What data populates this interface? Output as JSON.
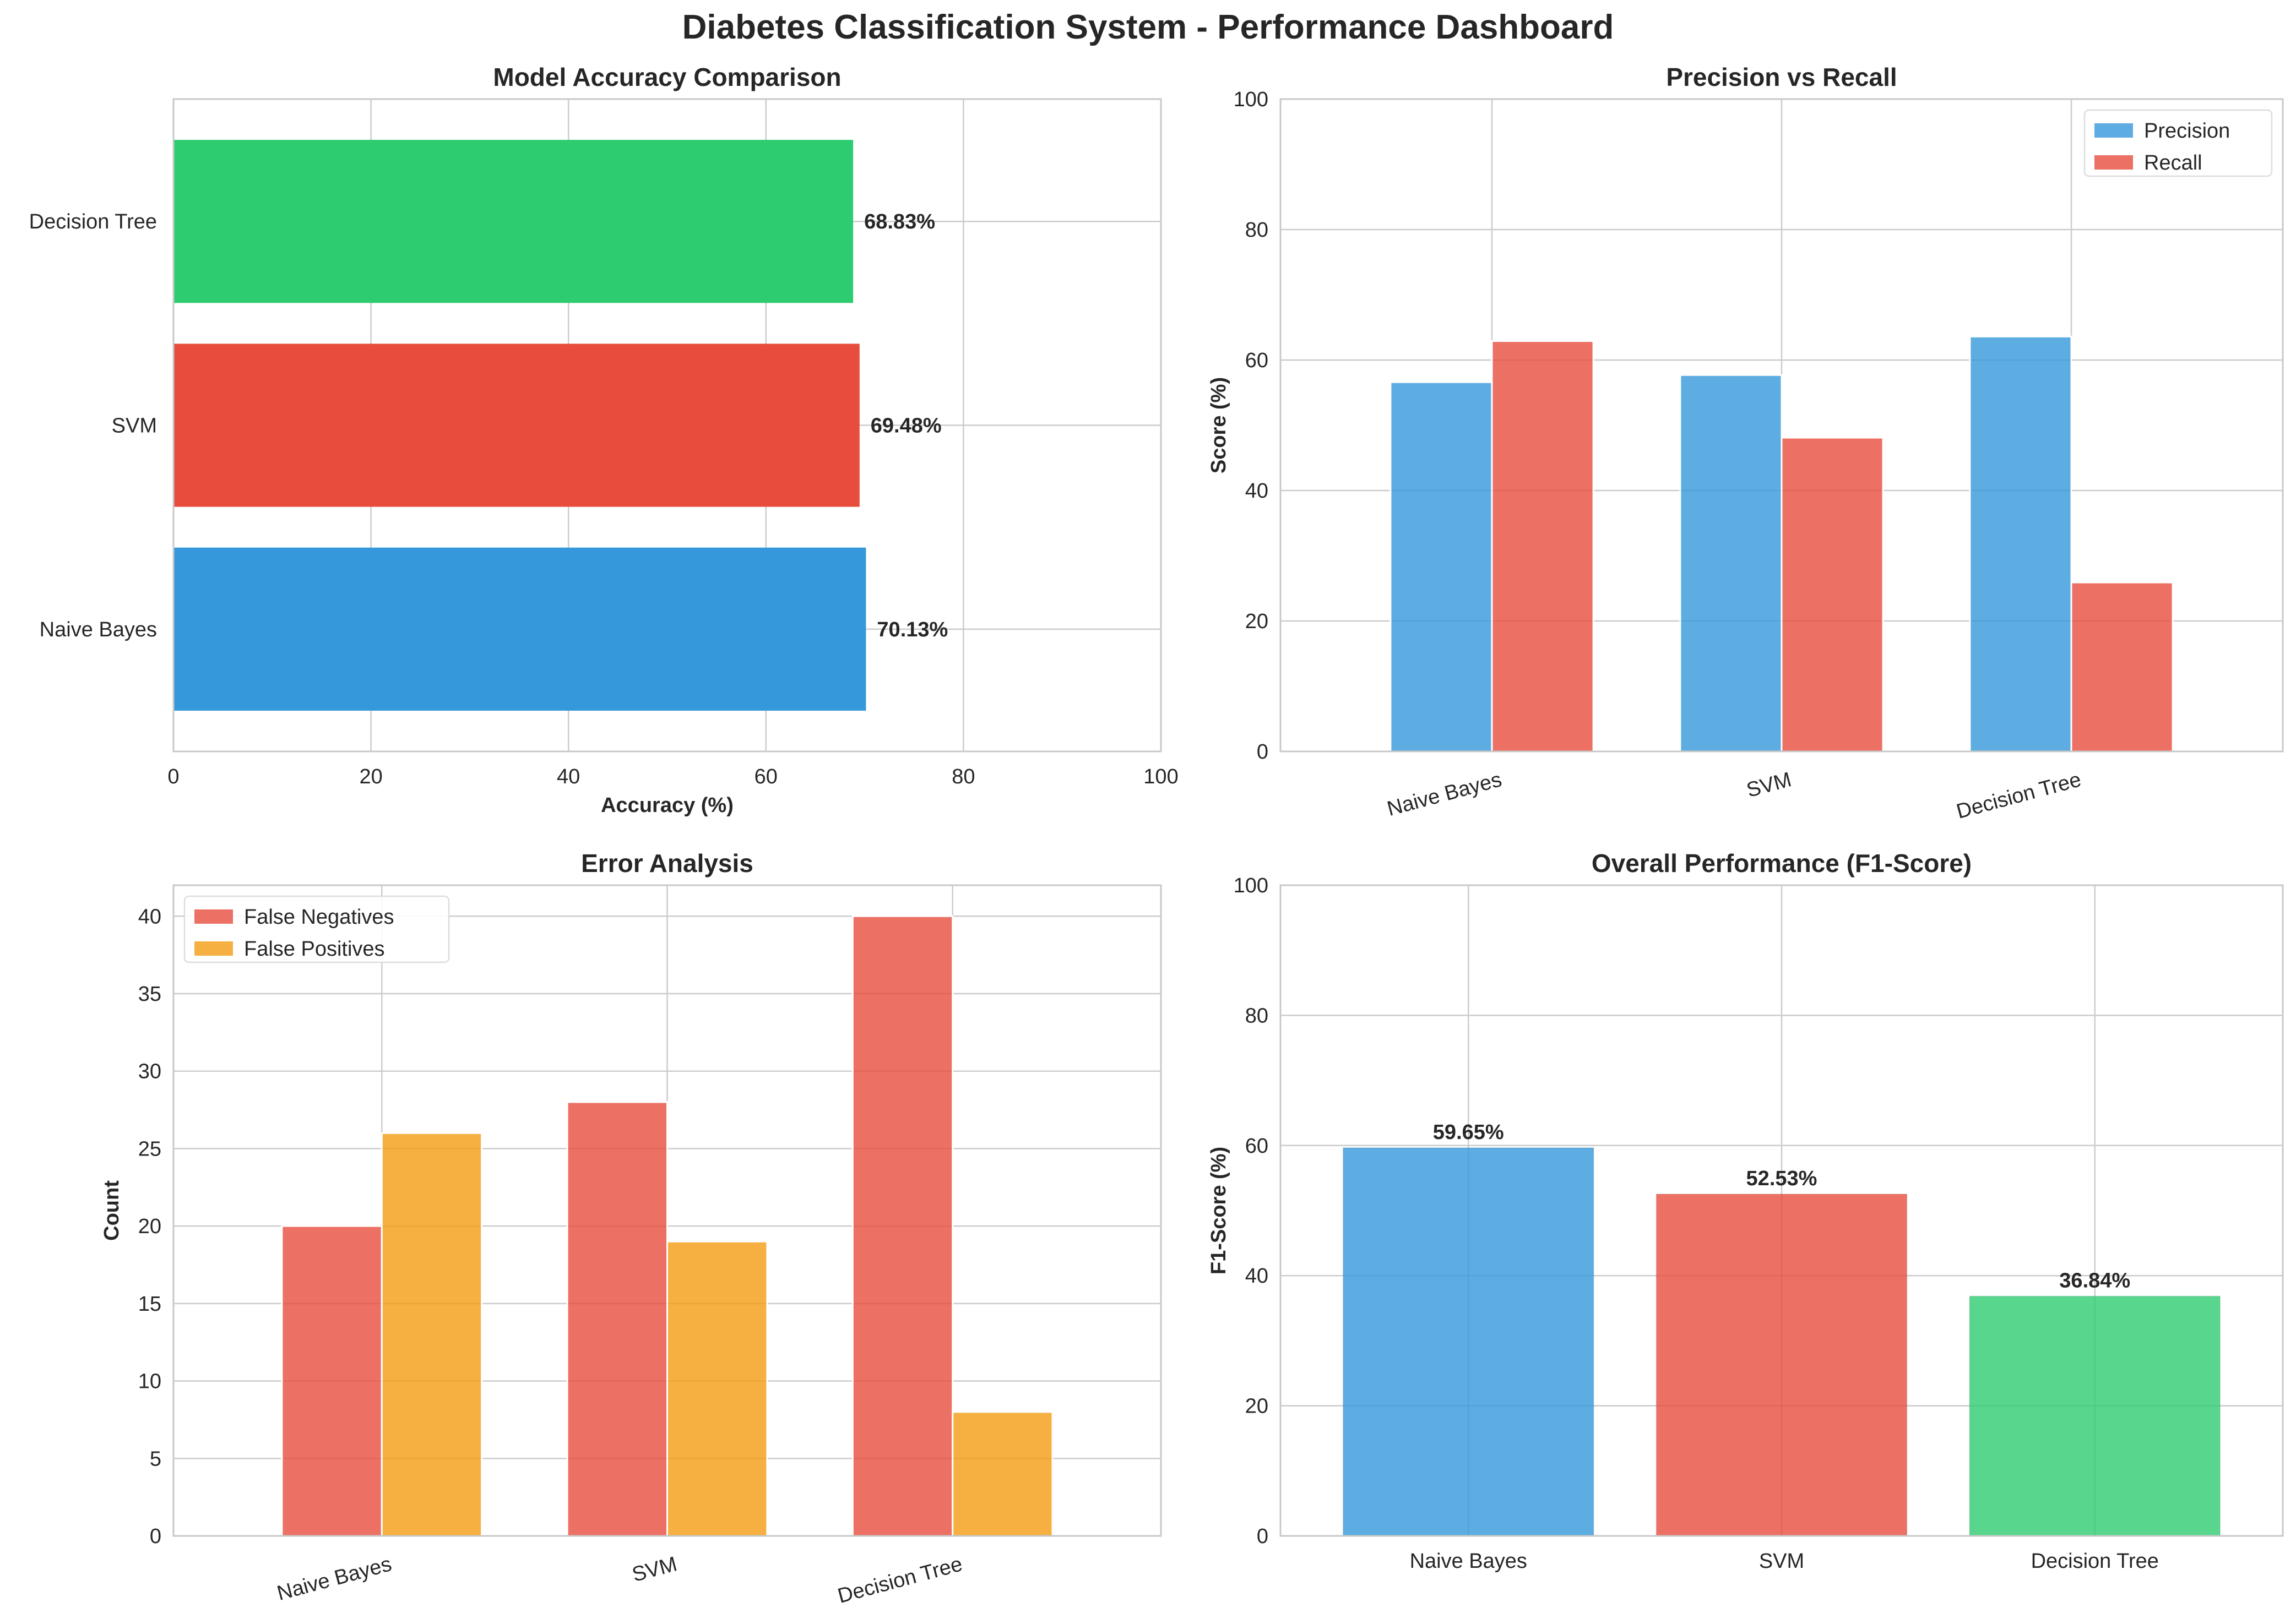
{
  "title": "Diabetes Classification System - Performance Dashboard",
  "chart_data": [
    {
      "id": "accuracy",
      "type": "bar",
      "orientation": "horizontal",
      "title": "Model Accuracy Comparison",
      "xlabel": "Accuracy (%)",
      "ylabel": "",
      "categories": [
        "Naive Bayes",
        "SVM",
        "Decision Tree"
      ],
      "values": [
        70.13,
        69.48,
        68.83
      ],
      "value_labels": [
        "70.13%",
        "69.48%",
        "68.83%"
      ],
      "colors": [
        "#3498db",
        "#e74c3c",
        "#2ecc71"
      ],
      "xlim": [
        0,
        100
      ],
      "ticks": [
        0,
        20,
        40,
        60,
        80,
        100
      ],
      "tick_labels": [
        "0",
        "20",
        "40",
        "60",
        "80",
        "100"
      ],
      "grid": true
    },
    {
      "id": "precision_recall",
      "type": "bar",
      "title": "Precision vs Recall",
      "xlabel": "",
      "ylabel": "Score (%)",
      "categories": [
        "Naive Bayes",
        "SVM",
        "Decision Tree"
      ],
      "series": [
        {
          "name": "Precision",
          "values": [
            56.6,
            57.7,
            63.6
          ],
          "color": "#3498db"
        },
        {
          "name": "Recall",
          "values": [
            62.9,
            48.1,
            25.9
          ],
          "color": "#e74c3c"
        }
      ],
      "ylim": [
        0,
        100
      ],
      "ticks": [
        0,
        20,
        40,
        60,
        80,
        100
      ],
      "tick_labels": [
        "0",
        "20",
        "40",
        "60",
        "80",
        "100"
      ],
      "legend": "top-right",
      "grid": true
    },
    {
      "id": "errors",
      "type": "bar",
      "title": "Error Analysis",
      "xlabel": "",
      "ylabel": "Count",
      "categories": [
        "Naive Bayes",
        "SVM",
        "Decision Tree"
      ],
      "series": [
        {
          "name": "False Negatives",
          "values": [
            20,
            28,
            40
          ],
          "color": "#e74c3c"
        },
        {
          "name": "False Positives",
          "values": [
            26,
            19,
            8
          ],
          "color": "#f39c12"
        }
      ],
      "ylim": [
        0,
        42
      ],
      "ticks": [
        0,
        5,
        10,
        15,
        20,
        25,
        30,
        35,
        40
      ],
      "tick_labels": [
        "0",
        "5",
        "10",
        "15",
        "20",
        "25",
        "30",
        "35",
        "40"
      ],
      "legend": "top-left",
      "grid": true
    },
    {
      "id": "f1",
      "type": "bar",
      "title": "Overall Performance (F1-Score)",
      "xlabel": "",
      "ylabel": "F1-Score (%)",
      "categories": [
        "Naive Bayes",
        "SVM",
        "Decision Tree"
      ],
      "values": [
        59.65,
        52.53,
        36.84
      ],
      "value_labels": [
        "59.65%",
        "52.53%",
        "36.84%"
      ],
      "colors": [
        "#3498db",
        "#e74c3c",
        "#2ecc71"
      ],
      "ylim": [
        0,
        100
      ],
      "ticks": [
        0,
        20,
        40,
        60,
        80,
        100
      ],
      "tick_labels": [
        "0",
        "20",
        "40",
        "60",
        "80",
        "100"
      ],
      "grid": true
    }
  ]
}
